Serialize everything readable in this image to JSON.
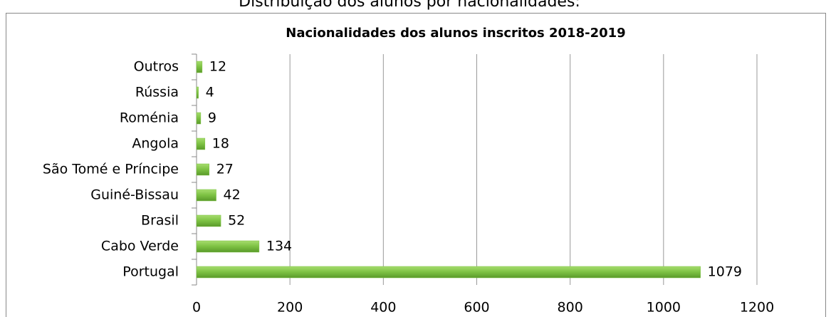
{
  "heading": "Distribuição dos alunos por nacionalidades:",
  "chart_data": {
    "type": "bar",
    "orientation": "horizontal",
    "title": "Nacionalidades dos alunos inscritos 2018-2019",
    "categories": [
      "Portugal",
      "Cabo Verde",
      "Brasil",
      "Guiné-Bissau",
      "São Tomé e Príncipe",
      "Angola",
      "Roménia",
      "Rússia",
      "Outros"
    ],
    "values": [
      1079,
      134,
      52,
      42,
      27,
      18,
      9,
      4,
      12
    ],
    "color": "#7cc142",
    "xlim": [
      0,
      1200
    ],
    "xticks": [
      0,
      200,
      400,
      600,
      800,
      1000,
      1200
    ],
    "grid": true
  }
}
